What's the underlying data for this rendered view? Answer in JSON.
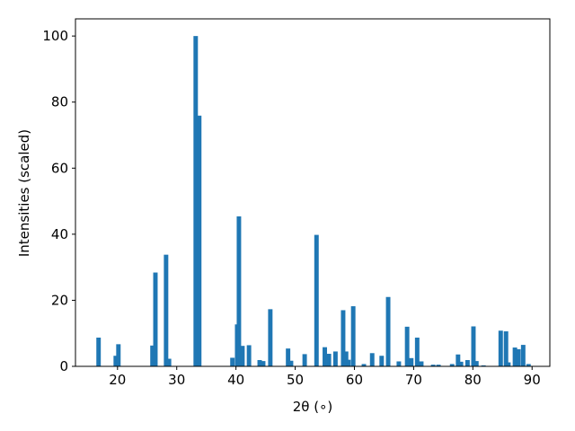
{
  "chart_data": {
    "type": "bar",
    "xlabel": "2θ (∘)",
    "ylabel": "Intensities (scaled)",
    "color": "#1f77b4",
    "x": [
      16.8,
      19.7,
      20.15,
      25.9,
      26.4,
      28.2,
      28.7,
      33.2,
      33.8,
      39.4,
      40.2,
      40.5,
      41.1,
      42.2,
      44.0,
      44.6,
      45.8,
      48.8,
      49.3,
      51.6,
      53.6,
      55.0,
      55.7,
      56.8,
      58.1,
      58.6,
      59.0,
      59.8,
      61.6,
      63.0,
      64.6,
      65.7,
      67.5,
      68.9,
      69.6,
      70.6,
      71.3,
      73.3,
      74.2,
      76.5,
      77.5,
      78.0,
      79.1,
      80.1,
      80.6,
      81.8,
      84.7,
      85.6,
      86.0,
      87.1,
      87.7,
      88.5,
      89.4
    ],
    "values": [
      8.7,
      3.2,
      6.7,
      6.3,
      28.4,
      33.8,
      2.3,
      100,
      75.9,
      2.6,
      12.7,
      45.4,
      6.2,
      6.4,
      1.9,
      1.6,
      17.3,
      5.4,
      1.7,
      3.7,
      39.8,
      5.8,
      3.8,
      4.5,
      17.0,
      4.5,
      2.0,
      18.2,
      0.7,
      4.0,
      3.2,
      21.0,
      1.5,
      12.0,
      2.5,
      8.7,
      1.5,
      0.5,
      0.5,
      0.7,
      3.6,
      1.4,
      1.9,
      12.1,
      1.6,
      0.3,
      10.8,
      10.6,
      1.2,
      5.7,
      5.2,
      6.5,
      0.7
    ],
    "xlim": [
      12.9,
      93.0
    ],
    "ylim": [
      0,
      105.2
    ],
    "xticks": [
      20,
      30,
      40,
      50,
      60,
      70,
      80,
      90
    ],
    "yticks": [
      0,
      20,
      40,
      60,
      80,
      100
    ]
  }
}
